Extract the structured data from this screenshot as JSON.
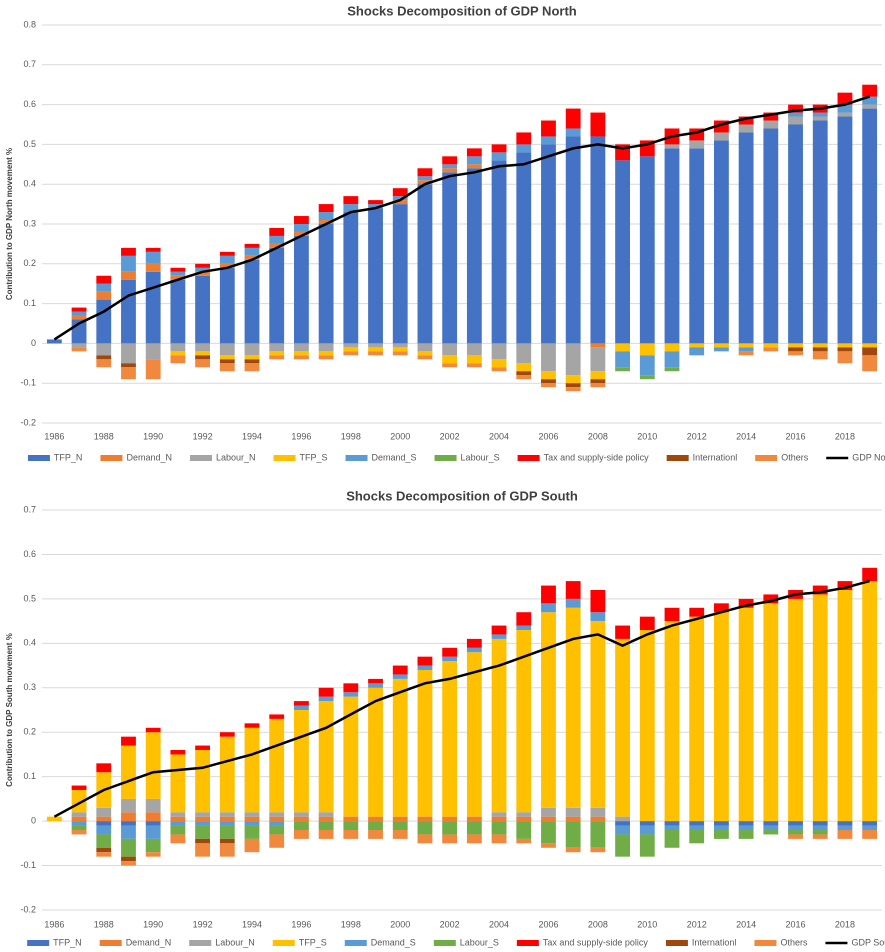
{
  "chart_data": [
    {
      "type": "bar",
      "stacked": true,
      "title": "Shocks Decomposition of GDP North",
      "ylabel": "Contribution to GDP North movement %",
      "categories": [
        "1986",
        null,
        "1988",
        null,
        "1990",
        null,
        "1992",
        null,
        "1994",
        null,
        "1996",
        null,
        "1998",
        null,
        "2000",
        null,
        "2002",
        null,
        "2004",
        null,
        "2006",
        null,
        "2008",
        null,
        "2010",
        null,
        "2012",
        null,
        "2014",
        null,
        "2016",
        null,
        "2018",
        null
      ],
      "ylim": [
        -0.2,
        0.8
      ],
      "yticks": [
        -0.2,
        -0.1,
        0,
        0.1,
        0.2,
        0.3,
        0.4,
        0.5,
        0.6,
        0.7,
        0.8
      ],
      "grid": true,
      "legend": "bottom",
      "series": [
        {
          "name": "TFP_N",
          "color": "#4472c4",
          "values": [
            0.01,
            0.06,
            0.11,
            0.16,
            0.18,
            0.16,
            0.17,
            0.19,
            0.21,
            0.24,
            0.27,
            0.3,
            0.33,
            0.34,
            0.35,
            0.4,
            0.43,
            0.44,
            0.46,
            0.48,
            0.5,
            0.52,
            0.52,
            0.46,
            0.47,
            0.49,
            0.49,
            0.51,
            0.53,
            0.54,
            0.55,
            0.56,
            0.57,
            0.59
          ]
        },
        {
          "name": "Demand_N",
          "color": "#ed7d31",
          "values": [
            0,
            0.01,
            0.02,
            0.02,
            0.02,
            0.01,
            0.01,
            0.01,
            0.01,
            0.01,
            0.01,
            0.01,
            0,
            0,
            0.01,
            0.01,
            0.01,
            0.01,
            0,
            0,
            0,
            0,
            -0.01,
            0,
            0,
            0,
            0,
            0,
            0,
            0,
            0,
            0,
            0,
            0
          ]
        },
        {
          "name": "Labour_N",
          "color": "#a5a5a5",
          "values": [
            0,
            -0.01,
            -0.03,
            -0.05,
            -0.04,
            -0.02,
            -0.02,
            -0.03,
            -0.03,
            -0.02,
            -0.02,
            -0.02,
            -0.01,
            -0.01,
            -0.01,
            -0.02,
            -0.03,
            -0.03,
            -0.04,
            -0.05,
            -0.07,
            -0.08,
            -0.06,
            0,
            0,
            0.01,
            0.02,
            0.02,
            0.02,
            0.02,
            0.02,
            0.01,
            0.01,
            0.01
          ]
        },
        {
          "name": "TFP_S",
          "color": "#ffc000",
          "values": [
            0,
            0,
            0,
            0,
            0,
            -0.01,
            -0.01,
            -0.01,
            -0.01,
            -0.01,
            -0.01,
            -0.01,
            -0.01,
            -0.01,
            -0.01,
            -0.01,
            -0.02,
            -0.02,
            -0.02,
            -0.02,
            -0.02,
            -0.02,
            -0.02,
            -0.02,
            -0.03,
            -0.02,
            -0.01,
            -0.01,
            -0.01,
            -0.01,
            -0.01,
            -0.01,
            -0.01,
            -0.01
          ]
        },
        {
          "name": "Demand_S",
          "color": "#5b9bd5",
          "values": [
            0,
            0.01,
            0.02,
            0.04,
            0.03,
            0.01,
            0.01,
            0.02,
            0.02,
            0.02,
            0.02,
            0.02,
            0.02,
            0.01,
            0.01,
            0.01,
            0.01,
            0.02,
            0.02,
            0.02,
            0.02,
            0.02,
            0,
            -0.04,
            -0.05,
            -0.04,
            -0.02,
            -0.01,
            -0.01,
            0,
            0.01,
            0.01,
            0.02,
            0.02
          ]
        },
        {
          "name": "Labour_S",
          "color": "#70ad47",
          "values": [
            0,
            0,
            0,
            0,
            0,
            0,
            0,
            0,
            0,
            0,
            0,
            0,
            0,
            0,
            0,
            0,
            0,
            0,
            0,
            0,
            0,
            0,
            0,
            -0.01,
            -0.01,
            -0.01,
            0,
            0,
            0,
            0,
            0,
            0,
            0,
            0
          ]
        },
        {
          "name": "Tax and supply-side policy",
          "color": "#ff0000",
          "values": [
            0,
            0.01,
            0.02,
            0.02,
            0.01,
            0.01,
            0.01,
            0.01,
            0.01,
            0.02,
            0.02,
            0.02,
            0.02,
            0.01,
            0.02,
            0.02,
            0.02,
            0.02,
            0.02,
            0.03,
            0.04,
            0.05,
            0.06,
            0.04,
            0.04,
            0.04,
            0.03,
            0.03,
            0.02,
            0.02,
            0.02,
            0.02,
            0.03,
            0.03
          ]
        },
        {
          "name": "Internationl",
          "color": "#9e480e",
          "values": [
            0,
            0,
            -0.01,
            -0.01,
            0,
            0,
            -0.01,
            -0.01,
            -0.01,
            0,
            0,
            0,
            0,
            0,
            0,
            0,
            0,
            0,
            0,
            -0.01,
            -0.01,
            -0.01,
            -0.01,
            0,
            0,
            0,
            0,
            0,
            0,
            0,
            -0.01,
            -0.01,
            -0.01,
            -0.02
          ]
        },
        {
          "name": "Others",
          "color": "#f0883e",
          "values": [
            0,
            -0.01,
            -0.02,
            -0.03,
            -0.05,
            -0.02,
            -0.02,
            -0.02,
            -0.02,
            -0.01,
            -0.01,
            -0.01,
            -0.01,
            -0.01,
            -0.01,
            -0.01,
            -0.01,
            -0.01,
            -0.01,
            -0.01,
            -0.01,
            -0.01,
            -0.01,
            0,
            0,
            0,
            0,
            0,
            -0.01,
            -0.01,
            -0.01,
            -0.02,
            -0.03,
            -0.04
          ]
        },
        {
          "name": "GDP North",
          "type": "line",
          "color": "#000000",
          "values": [
            0.01,
            0.05,
            0.08,
            0.12,
            0.14,
            0.16,
            0.18,
            0.19,
            0.21,
            0.24,
            0.27,
            0.3,
            0.33,
            0.34,
            0.36,
            0.4,
            0.42,
            0.43,
            0.445,
            0.45,
            0.47,
            0.49,
            0.5,
            0.49,
            0.5,
            0.52,
            0.53,
            0.55,
            0.565,
            0.575,
            0.585,
            0.59,
            0.6,
            0.62
          ]
        }
      ]
    },
    {
      "type": "bar",
      "stacked": true,
      "title": "Shocks Decomposition of GDP South",
      "ylabel": "Contribution to GDP South movement %",
      "categories": [
        "1986",
        null,
        "1988",
        null,
        "1990",
        null,
        "1992",
        null,
        "1994",
        null,
        "1996",
        null,
        "1998",
        null,
        "2000",
        null,
        "2002",
        null,
        "2004",
        null,
        "2006",
        null,
        "2008",
        null,
        "2010",
        null,
        "2012",
        null,
        "2014",
        null,
        "2016",
        null,
        "2018",
        null
      ],
      "ylim": [
        -0.2,
        0.7
      ],
      "yticks": [
        -0.2,
        -0.1,
        0,
        0.1,
        0.2,
        0.3,
        0.4,
        0.5,
        0.6,
        0.7
      ],
      "grid": true,
      "legend": "bottom",
      "series": [
        {
          "name": "TFP_N",
          "color": "#4472c4",
          "values": [
            0,
            0,
            -0.01,
            -0.01,
            -0.01,
            0,
            0,
            0,
            0,
            0,
            0,
            0,
            0,
            0,
            0,
            0,
            0,
            0,
            0,
            0,
            0,
            0,
            0,
            -0.01,
            -0.01,
            -0.01,
            -0.01,
            -0.01,
            -0.01,
            -0.01,
            -0.01,
            -0.01,
            -0.01,
            -0.01
          ]
        },
        {
          "name": "Demand_N",
          "color": "#ed7d31",
          "values": [
            0,
            0.01,
            0.01,
            0.02,
            0.02,
            0.01,
            0.01,
            0.01,
            0.01,
            0.01,
            0.01,
            0.01,
            0.01,
            0.01,
            0.01,
            0.01,
            0.01,
            0.01,
            0.01,
            0.01,
            0.01,
            0.01,
            0.01,
            0,
            0,
            0,
            0,
            0,
            0,
            0,
            0,
            0,
            0,
            0
          ]
        },
        {
          "name": "Labour_N",
          "color": "#a5a5a5",
          "values": [
            0,
            0.01,
            0.02,
            0.03,
            0.03,
            0.01,
            0.01,
            0.01,
            0.01,
            0.01,
            0.01,
            0.01,
            0,
            0,
            0,
            0,
            0,
            0,
            0.01,
            0.01,
            0.02,
            0.02,
            0.02,
            0.01,
            0,
            0,
            0,
            0,
            0,
            0,
            0,
            0,
            0,
            0
          ]
        },
        {
          "name": "TFP_S",
          "color": "#ffc000",
          "values": [
            0.01,
            0.05,
            0.08,
            0.12,
            0.15,
            0.13,
            0.14,
            0.17,
            0.19,
            0.21,
            0.23,
            0.25,
            0.27,
            0.29,
            0.31,
            0.33,
            0.35,
            0.37,
            0.39,
            0.41,
            0.44,
            0.45,
            0.42,
            0.4,
            0.43,
            0.45,
            0.46,
            0.47,
            0.48,
            0.49,
            0.5,
            0.51,
            0.52,
            0.54
          ]
        },
        {
          "name": "Demand_S",
          "color": "#5b9bd5",
          "values": [
            0,
            -0.01,
            -0.02,
            -0.03,
            -0.03,
            -0.01,
            -0.01,
            -0.01,
            -0.01,
            -0.01,
            0.01,
            0.01,
            0.01,
            0.01,
            0.01,
            0.01,
            0.01,
            0.01,
            0.01,
            0.01,
            0.02,
            0.02,
            0.02,
            -0.02,
            -0.02,
            -0.01,
            -0.01,
            -0.01,
            -0.01,
            -0.01,
            -0.01,
            -0.01,
            -0.01,
            -0.01
          ]
        },
        {
          "name": "Labour_S",
          "color": "#70ad47",
          "values": [
            0,
            -0.01,
            -0.03,
            -0.04,
            -0.03,
            -0.02,
            -0.03,
            -0.03,
            -0.03,
            -0.02,
            -0.02,
            -0.02,
            -0.02,
            -0.02,
            -0.02,
            -0.03,
            -0.03,
            -0.03,
            -0.03,
            -0.04,
            -0.05,
            -0.06,
            -0.06,
            -0.05,
            -0.05,
            -0.04,
            -0.03,
            -0.02,
            -0.02,
            -0.01,
            -0.01,
            -0.01,
            0,
            0
          ]
        },
        {
          "name": "Tax and supply-side policy",
          "color": "#ff0000",
          "values": [
            0,
            0.01,
            0.02,
            0.02,
            0.01,
            0.01,
            0.01,
            0.01,
            0.01,
            0.01,
            0.01,
            0.02,
            0.02,
            0.01,
            0.02,
            0.02,
            0.02,
            0.02,
            0.02,
            0.03,
            0.04,
            0.04,
            0.05,
            0.03,
            0.03,
            0.03,
            0.02,
            0.02,
            0.02,
            0.02,
            0.02,
            0.02,
            0.02,
            0.03
          ]
        },
        {
          "name": "Internationl",
          "color": "#9e480e",
          "values": [
            0,
            0,
            -0.01,
            -0.01,
            0,
            0,
            -0.01,
            -0.01,
            0,
            0,
            0,
            0,
            0,
            0,
            0,
            0,
            0,
            0,
            0,
            0,
            0,
            0,
            0,
            0,
            0,
            0,
            0,
            0,
            0,
            0,
            0,
            0,
            0,
            0
          ]
        },
        {
          "name": "Others",
          "color": "#f0883e",
          "values": [
            0,
            -0.01,
            -0.01,
            -0.01,
            -0.01,
            -0.02,
            -0.03,
            -0.03,
            -0.03,
            -0.03,
            -0.02,
            -0.02,
            -0.02,
            -0.02,
            -0.02,
            -0.02,
            -0.02,
            -0.02,
            -0.02,
            -0.01,
            -0.01,
            -0.01,
            -0.01,
            0,
            0,
            0,
            0,
            0,
            0,
            0,
            -0.01,
            -0.01,
            -0.02,
            -0.02
          ]
        },
        {
          "name": "GDP South",
          "type": "line",
          "color": "#000000",
          "values": [
            0.01,
            0.04,
            0.07,
            0.09,
            0.11,
            0.115,
            0.12,
            0.135,
            0.15,
            0.17,
            0.19,
            0.21,
            0.24,
            0.27,
            0.29,
            0.31,
            0.32,
            0.335,
            0.35,
            0.37,
            0.39,
            0.41,
            0.42,
            0.395,
            0.42,
            0.44,
            0.455,
            0.47,
            0.485,
            0.495,
            0.51,
            0.515,
            0.525,
            0.54
          ]
        }
      ]
    }
  ]
}
